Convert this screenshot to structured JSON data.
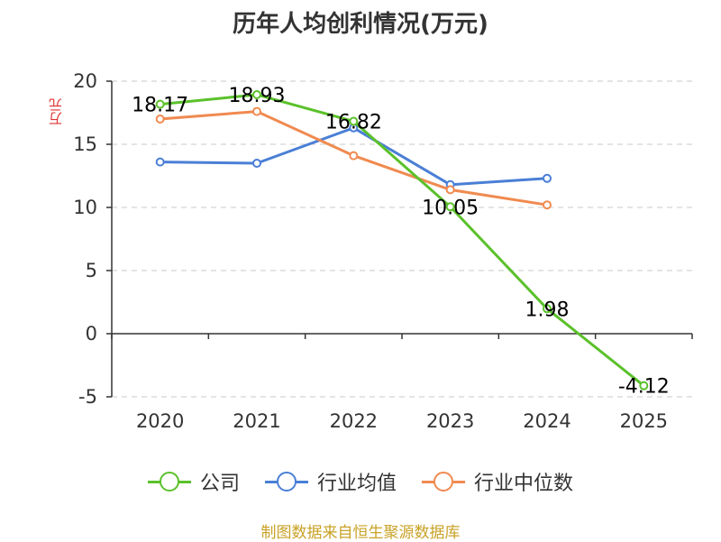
{
  "title": "历年人均创利情况(万元)",
  "y_unit": "万元",
  "source": "制图数据来自恒生聚源数据库",
  "chart_data": {
    "type": "line",
    "title": "历年人均创利情况(万元)",
    "ylabel": "万元",
    "categories": [
      "2020",
      "2021",
      "2022",
      "2023",
      "2024",
      "2025"
    ],
    "ylim": [
      -5,
      20
    ],
    "yticks": [
      20,
      15,
      10,
      5,
      0,
      -5
    ],
    "grid": true,
    "legend_position": "bottom",
    "series": [
      {
        "name": "公司",
        "color": "#5bc12b",
        "values": [
          18.17,
          18.93,
          16.82,
          10.05,
          1.98,
          -4.12
        ],
        "labels": [
          "18.17",
          "18.93",
          "16.82",
          "10.05",
          "1.98",
          "-4.12"
        ]
      },
      {
        "name": "行业均值",
        "color": "#4a7fd6",
        "values": [
          13.6,
          13.5,
          16.3,
          11.8,
          12.3,
          null
        ]
      },
      {
        "name": "行业中位数",
        "color": "#f08a50",
        "values": [
          17.0,
          17.6,
          14.1,
          11.4,
          10.2,
          null
        ]
      }
    ]
  }
}
